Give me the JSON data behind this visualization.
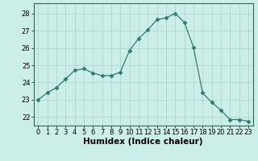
{
  "x": [
    0,
    1,
    2,
    3,
    4,
    5,
    6,
    7,
    8,
    9,
    10,
    11,
    12,
    13,
    14,
    15,
    16,
    17,
    18,
    19,
    20,
    21,
    22,
    23
  ],
  "y": [
    23.0,
    23.4,
    23.7,
    24.2,
    24.7,
    24.8,
    24.55,
    24.4,
    24.4,
    24.6,
    25.85,
    26.55,
    27.05,
    27.65,
    27.75,
    28.0,
    27.5,
    26.05,
    23.4,
    22.85,
    22.4,
    21.85,
    21.85,
    21.75
  ],
  "line_color": "#2e7d6e",
  "marker": "D",
  "marker_size": 2.5,
  "bg_color": "#cceee8",
  "grid_color": "#b0d8d0",
  "xlabel": "Humidex (Indice chaleur)",
  "xlabel_fontsize": 7.5,
  "ylim": [
    21.5,
    28.6
  ],
  "xlim": [
    -0.5,
    23.5
  ],
  "yticks": [
    22,
    23,
    24,
    25,
    26,
    27,
    28
  ],
  "xticks": [
    0,
    1,
    2,
    3,
    4,
    5,
    6,
    7,
    8,
    9,
    10,
    11,
    12,
    13,
    14,
    15,
    16,
    17,
    18,
    19,
    20,
    21,
    22,
    23
  ],
  "tick_fontsize": 6,
  "spine_color": "#336655"
}
